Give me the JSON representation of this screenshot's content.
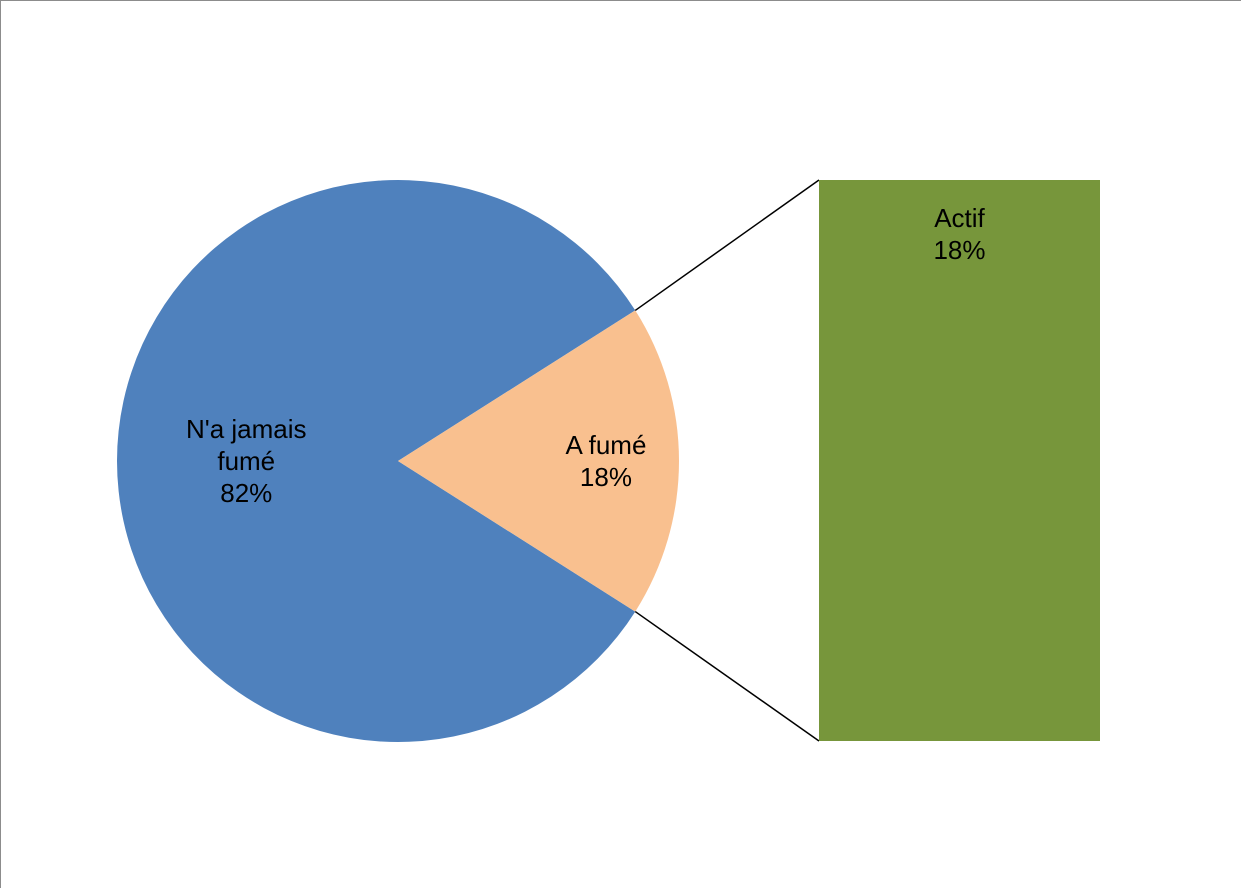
{
  "chart_data": {
    "type": "pie",
    "subtype": "bar-of-pie",
    "slices": [
      {
        "name": "N'a jamais fumé",
        "value": 82,
        "label_lines": [
          "N'a jamais",
          "fumé",
          "82%"
        ],
        "color": "#4F81BD"
      },
      {
        "name": "A fumé",
        "value": 18,
        "label_lines": [
          "A fumé",
          "18%"
        ],
        "color": "#F9C08F"
      }
    ],
    "breakdown_bar": {
      "source_slice": "A fumé",
      "segments": [
        {
          "name": "Actif",
          "value": 18,
          "label_lines": [
            "Actif",
            "18%"
          ],
          "color": "#77963B"
        }
      ]
    },
    "connector_color": "#000000",
    "title": "",
    "legend": "none"
  }
}
